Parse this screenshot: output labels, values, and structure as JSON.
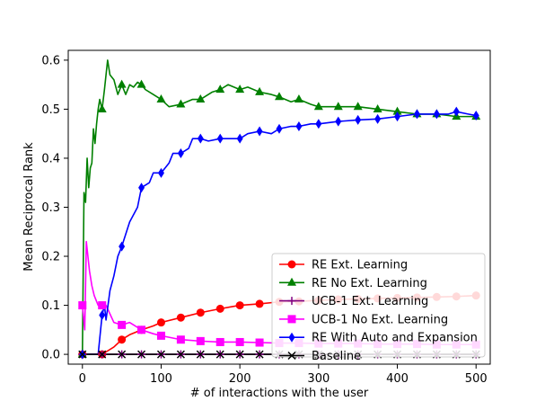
{
  "chart_data": {
    "type": "line",
    "xlabel": "# of interactions with the user",
    "ylabel": "Mean Reciprocal Rank",
    "xlim": [
      -18,
      518
    ],
    "ylim": [
      -0.02,
      0.62
    ],
    "x_ticks": [
      "0",
      "100",
      "200",
      "300",
      "400",
      "500"
    ],
    "y_ticks": [
      "0.0",
      "0.1",
      "0.2",
      "0.3",
      "0.4",
      "0.5",
      "0.6"
    ],
    "x_tick_values": [
      0,
      100,
      200,
      300,
      400,
      500
    ],
    "y_tick_values": [
      0.0,
      0.1,
      0.2,
      0.3,
      0.4,
      0.5,
      0.6
    ],
    "grid": false,
    "legend_position": "lower-right",
    "series": [
      {
        "name": "RE Ext. Learning",
        "color": "#ff0000",
        "marker": "circle",
        "x": [
          0,
          10,
          20,
          25,
          30,
          40,
          50,
          60,
          75,
          90,
          100,
          125,
          150,
          175,
          200,
          225,
          250,
          275,
          300,
          325,
          350,
          375,
          400,
          425,
          450,
          475,
          500
        ],
        "y": [
          0.0,
          0.0,
          0.0,
          0.0,
          0.005,
          0.015,
          0.03,
          0.04,
          0.05,
          0.058,
          0.065,
          0.075,
          0.085,
          0.093,
          0.1,
          0.103,
          0.107,
          0.108,
          0.11,
          0.112,
          0.113,
          0.114,
          0.115,
          0.116,
          0.117,
          0.118,
          0.12
        ]
      },
      {
        "name": "RE No Ext. Learning",
        "color": "#008000",
        "marker": "triangle",
        "x": [
          0,
          2,
          4,
          6,
          8,
          10,
          12,
          14,
          16,
          18,
          20,
          22,
          25,
          28,
          30,
          32,
          35,
          40,
          45,
          50,
          55,
          60,
          65,
          70,
          75,
          80,
          90,
          100,
          110,
          125,
          140,
          150,
          165,
          175,
          185,
          200,
          210,
          225,
          240,
          250,
          265,
          275,
          290,
          300,
          325,
          350,
          375,
          400,
          425,
          450,
          475,
          500
        ],
        "y": [
          0.0,
          0.33,
          0.31,
          0.4,
          0.34,
          0.38,
          0.39,
          0.46,
          0.43,
          0.47,
          0.5,
          0.52,
          0.5,
          0.54,
          0.57,
          0.6,
          0.57,
          0.56,
          0.53,
          0.55,
          0.53,
          0.55,
          0.545,
          0.555,
          0.55,
          0.54,
          0.53,
          0.52,
          0.505,
          0.51,
          0.52,
          0.52,
          0.535,
          0.54,
          0.55,
          0.54,
          0.545,
          0.535,
          0.53,
          0.525,
          0.515,
          0.52,
          0.51,
          0.505,
          0.505,
          0.505,
          0.5,
          0.495,
          0.49,
          0.49,
          0.485,
          0.485
        ]
      },
      {
        "name": "UCB-1 Ext. Learning",
        "color": "#800080",
        "marker": "plus",
        "x": [
          0,
          500
        ],
        "y": [
          0.0,
          0.0
        ]
      },
      {
        "name": "UCB-1 No Ext. Learning",
        "color": "#ff00ff",
        "marker": "square",
        "x": [
          0,
          3,
          5,
          7,
          9,
          12,
          15,
          20,
          25,
          30,
          40,
          50,
          60,
          75,
          90,
          100,
          125,
          150,
          175,
          200,
          225,
          250,
          275,
          300,
          325,
          350,
          375,
          400,
          425,
          450,
          475,
          500
        ],
        "y": [
          0.1,
          0.05,
          0.23,
          0.2,
          0.17,
          0.14,
          0.12,
          0.1,
          0.1,
          0.1,
          0.065,
          0.06,
          0.065,
          0.05,
          0.042,
          0.038,
          0.03,
          0.027,
          0.025,
          0.025,
          0.024,
          0.023,
          0.023,
          0.022,
          0.022,
          0.022,
          0.021,
          0.021,
          0.021,
          0.02,
          0.02,
          0.02
        ]
      },
      {
        "name": "RE With Auto and Expansion",
        "color": "#0000ff",
        "marker": "diamond",
        "x": [
          0,
          20,
          25,
          28,
          30,
          35,
          40,
          45,
          50,
          60,
          70,
          75,
          85,
          90,
          100,
          110,
          115,
          125,
          135,
          140,
          150,
          160,
          175,
          185,
          200,
          210,
          225,
          240,
          250,
          265,
          275,
          290,
          300,
          325,
          350,
          375,
          400,
          425,
          450,
          465,
          475,
          490,
          500
        ],
        "y": [
          0.0,
          0.0,
          0.08,
          0.1,
          0.07,
          0.13,
          0.16,
          0.2,
          0.22,
          0.27,
          0.3,
          0.34,
          0.35,
          0.37,
          0.37,
          0.39,
          0.41,
          0.41,
          0.42,
          0.44,
          0.44,
          0.435,
          0.44,
          0.44,
          0.44,
          0.45,
          0.455,
          0.45,
          0.46,
          0.465,
          0.465,
          0.47,
          0.47,
          0.475,
          0.478,
          0.48,
          0.485,
          0.49,
          0.49,
          0.49,
          0.495,
          0.49,
          0.487
        ]
      },
      {
        "name": "Baseline",
        "color": "#000000",
        "marker": "x",
        "x": [
          0,
          500
        ],
        "y": [
          0.0,
          0.0
        ]
      }
    ]
  }
}
